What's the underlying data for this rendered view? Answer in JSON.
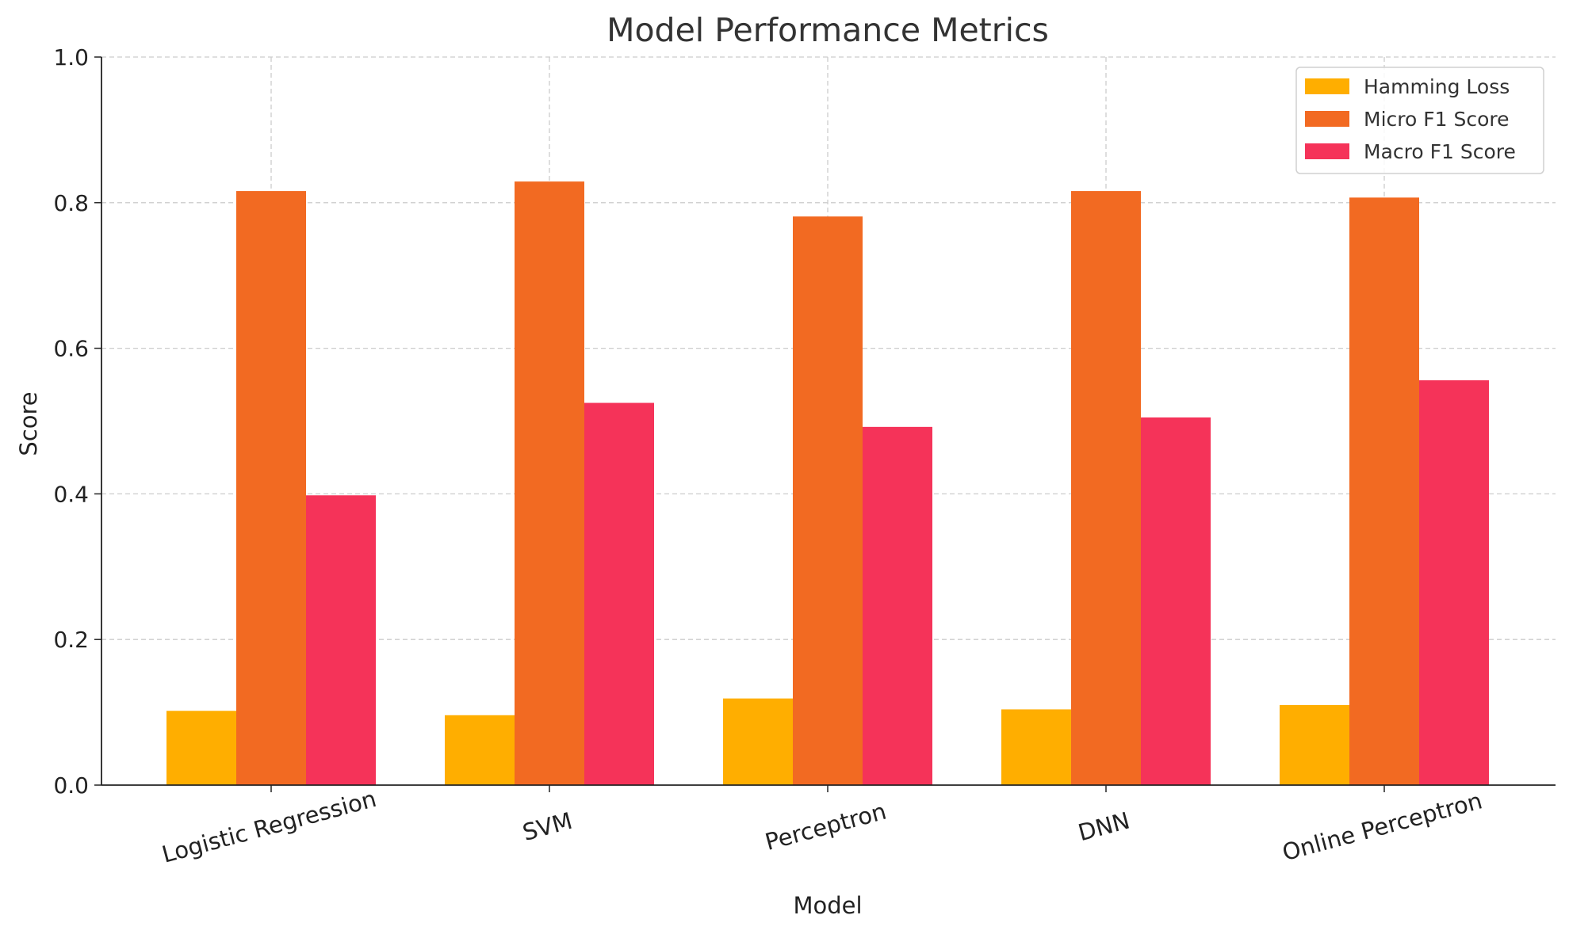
{
  "chart_data": {
    "type": "bar",
    "title": "Model Performance Metrics",
    "xlabel": "Model",
    "ylabel": "Score",
    "categories": [
      "Logistic Regression",
      "SVM",
      "Perceptron",
      "DNN",
      "Online Perceptron"
    ],
    "series": [
      {
        "name": "Hamming Loss",
        "color": "#FFAE00",
        "values": [
          0.102,
          0.096,
          0.119,
          0.104,
          0.11
        ]
      },
      {
        "name": "Micro F1 Score",
        "color": "#F26A22",
        "values": [
          0.816,
          0.829,
          0.781,
          0.816,
          0.807
        ]
      },
      {
        "name": "Macro F1 Score",
        "color": "#F53359",
        "values": [
          0.398,
          0.525,
          0.492,
          0.505,
          0.556
        ]
      }
    ],
    "ylim": [
      0,
      1.0
    ],
    "yticks": [
      "0.0",
      "0.2",
      "0.4",
      "0.6",
      "0.8",
      "1.0"
    ],
    "grid": true,
    "legend_position": "top-right"
  }
}
